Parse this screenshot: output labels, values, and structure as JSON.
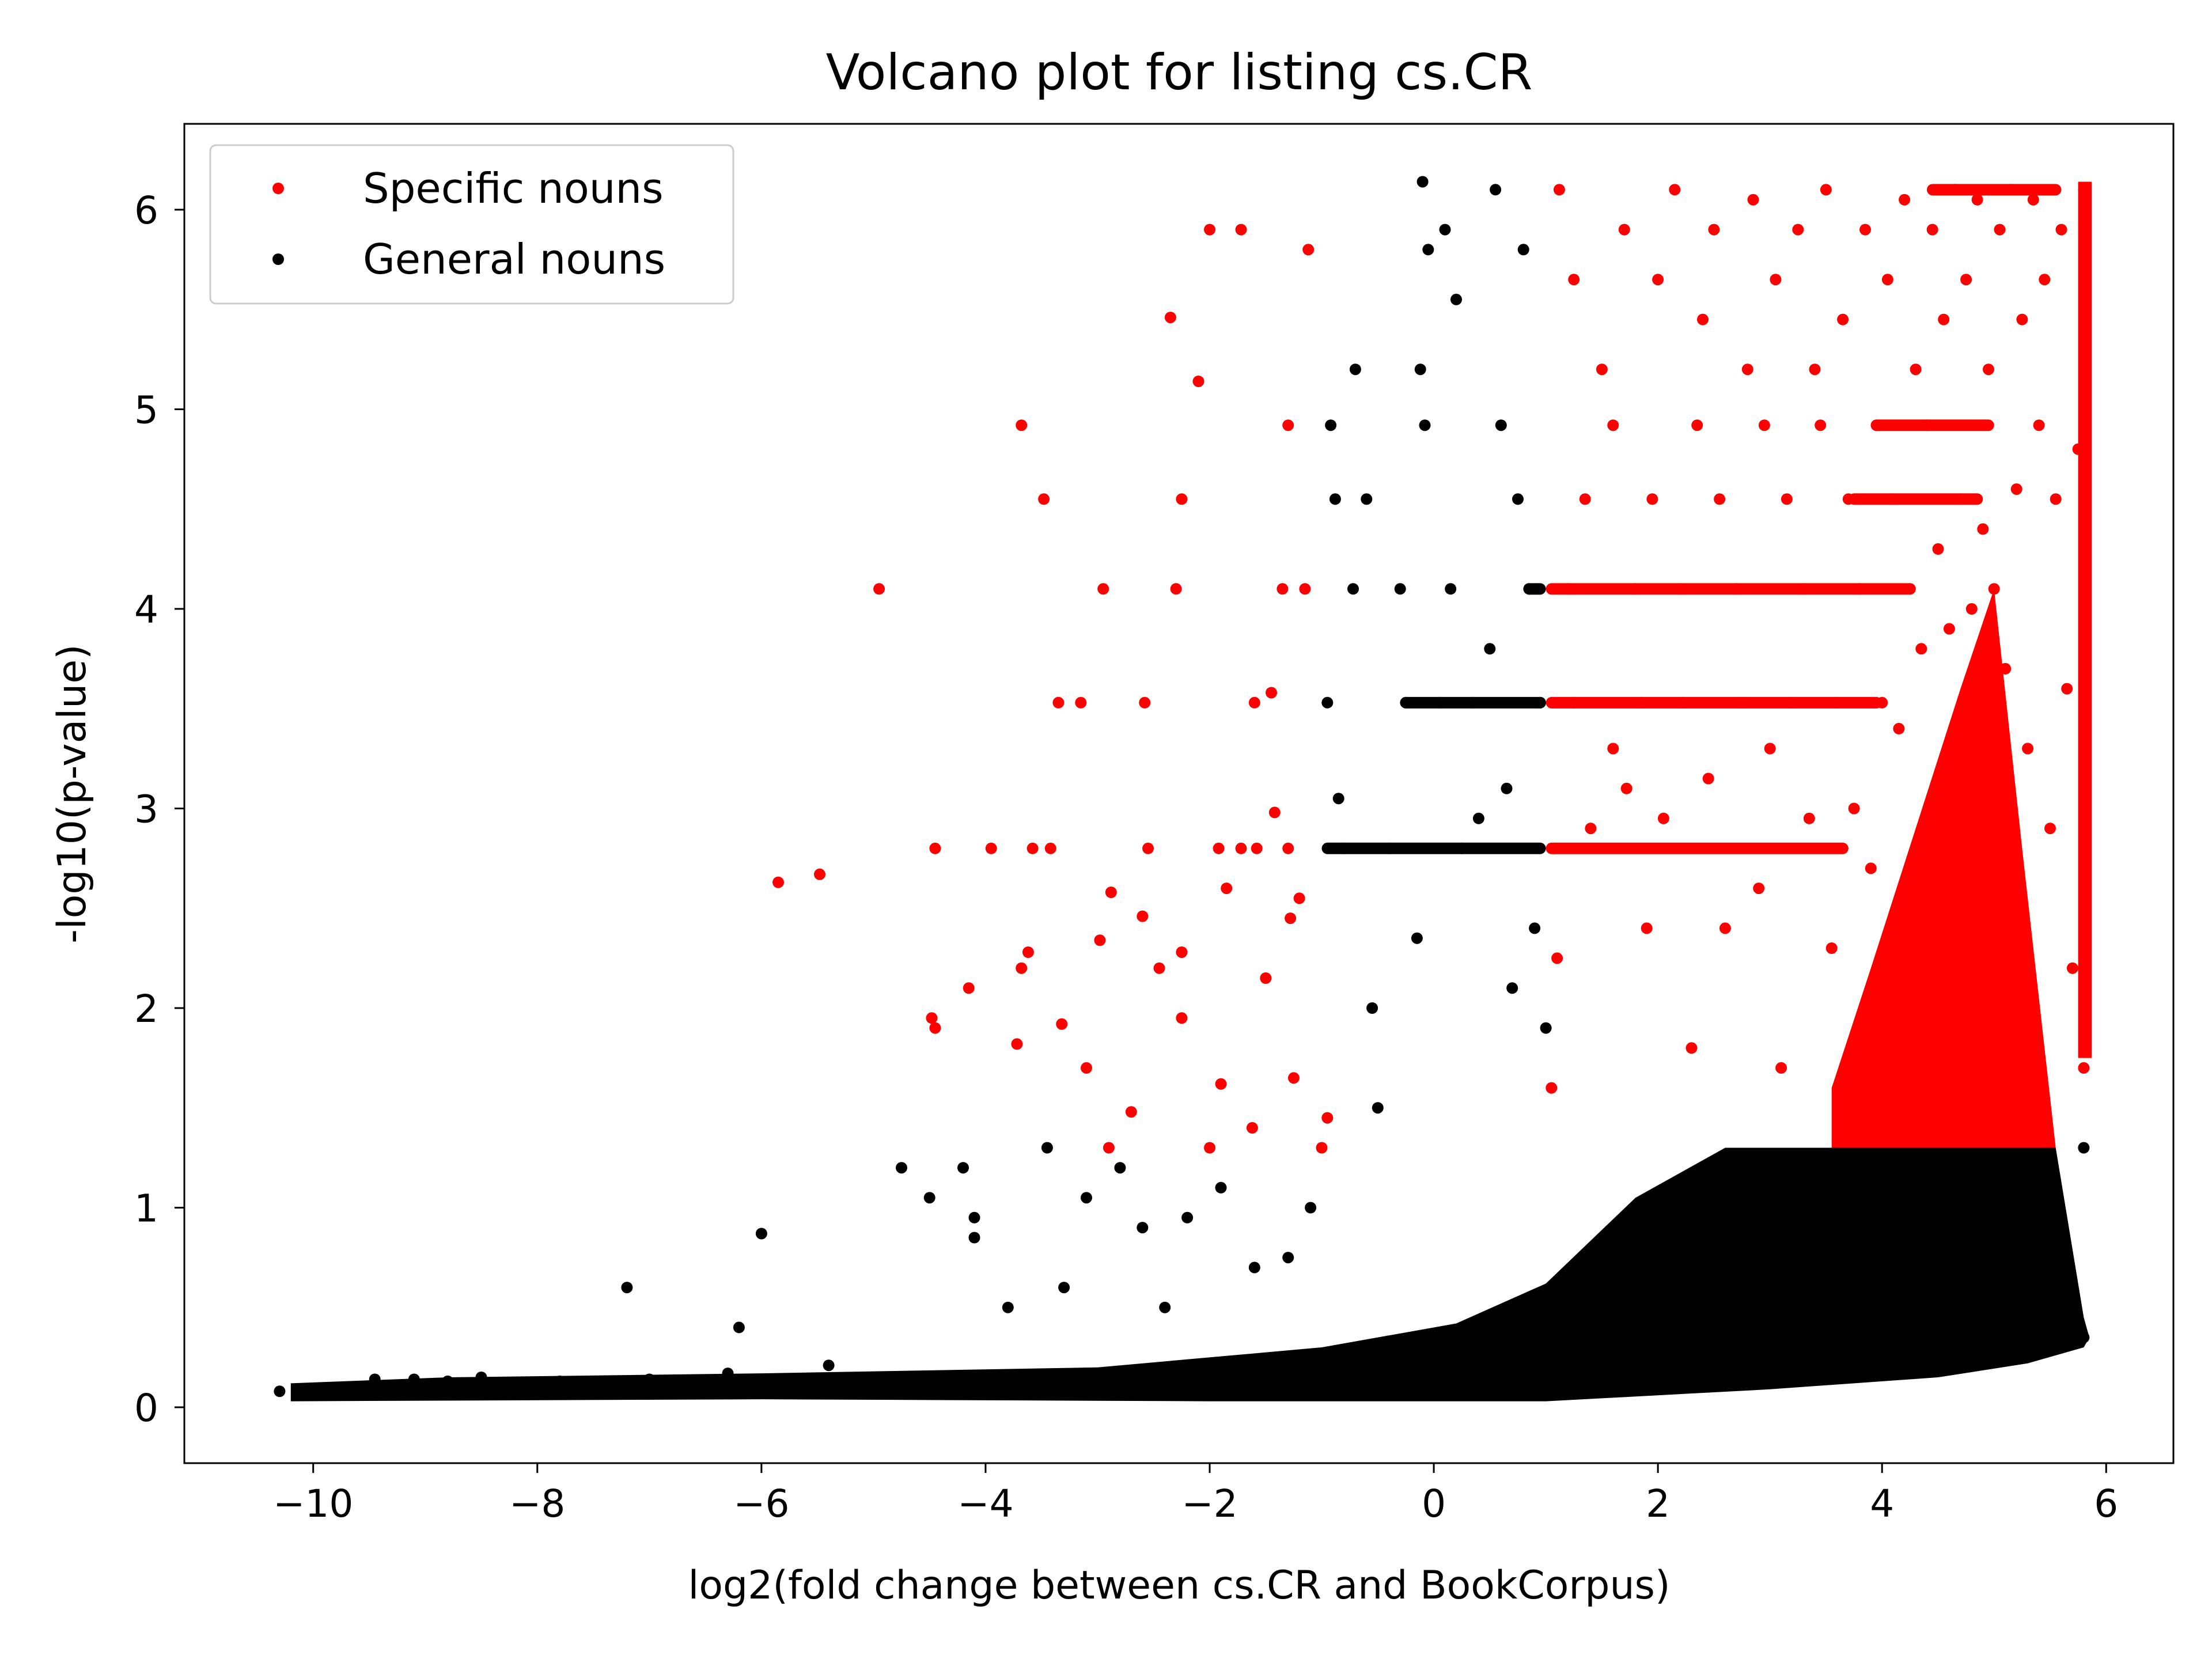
{
  "chart_data": {
    "type": "scatter",
    "title": "Volcano plot for listing cs.CR",
    "xlabel": "log2(fold change between cs.CR and BookCorpus)",
    "ylabel": "-log10(p-value)",
    "xlim": [
      -11.15,
      6.6
    ],
    "ylim": [
      -0.28,
      6.43
    ],
    "xticks": [
      -10,
      -8,
      -6,
      -4,
      -2,
      0,
      2,
      4,
      6
    ],
    "xtick_labels": [
      "−10",
      "−8",
      "−6",
      "−4",
      "−2",
      "0",
      "2",
      "4",
      "6"
    ],
    "yticks": [
      0,
      1,
      2,
      3,
      4,
      5,
      6
    ],
    "ytick_labels": [
      "0",
      "1",
      "2",
      "3",
      "4",
      "5",
      "6"
    ],
    "grid": false,
    "legend_position": "top-left",
    "significance_threshold": 1.3,
    "series": [
      {
        "name": "Specific nouns",
        "color": "#ff0000",
        "points": [
          [
            -5.85,
            2.63
          ],
          [
            -5.48,
            2.67
          ],
          [
            -4.95,
            4.1
          ],
          [
            -4.48,
            1.95
          ],
          [
            -4.45,
            2.8
          ],
          [
            -4.45,
            1.9
          ],
          [
            -4.15,
            2.1
          ],
          [
            -3.95,
            2.8
          ],
          [
            -3.72,
            1.82
          ],
          [
            -3.68,
            2.2
          ],
          [
            -3.68,
            4.92
          ],
          [
            -3.62,
            2.28
          ],
          [
            -3.58,
            2.8
          ],
          [
            -3.48,
            4.55
          ],
          [
            -3.42,
            2.8
          ],
          [
            -3.35,
            3.53
          ],
          [
            -3.32,
            1.92
          ],
          [
            -3.15,
            3.53
          ],
          [
            -3.1,
            1.7
          ],
          [
            -2.98,
            2.34
          ],
          [
            -2.95,
            4.1
          ],
          [
            -2.9,
            1.3
          ],
          [
            -2.88,
            2.58
          ],
          [
            -2.7,
            1.48
          ],
          [
            -2.6,
            2.46
          ],
          [
            -2.58,
            3.53
          ],
          [
            -2.55,
            2.8
          ],
          [
            -2.45,
            2.2
          ],
          [
            -2.35,
            5.46
          ],
          [
            -2.3,
            4.1
          ],
          [
            -2.25,
            4.55
          ],
          [
            -2.25,
            2.28
          ],
          [
            -2.25,
            1.95
          ],
          [
            -2.1,
            5.14
          ],
          [
            -2.0,
            5.9
          ],
          [
            -2.0,
            1.3
          ],
          [
            -1.92,
            2.8
          ],
          [
            -1.9,
            1.62
          ],
          [
            -1.85,
            2.6
          ],
          [
            -1.72,
            5.9
          ],
          [
            -1.72,
            2.8
          ],
          [
            -1.62,
            1.4
          ],
          [
            -1.6,
            3.53
          ],
          [
            -1.58,
            2.8
          ],
          [
            -1.5,
            2.15
          ],
          [
            -1.45,
            3.58
          ],
          [
            -1.42,
            2.98
          ],
          [
            -1.35,
            4.1
          ],
          [
            -1.3,
            2.8
          ],
          [
            -1.3,
            4.92
          ],
          [
            -1.28,
            2.45
          ],
          [
            -1.25,
            1.65
          ],
          [
            -1.2,
            2.55
          ],
          [
            -1.15,
            4.1
          ],
          [
            -1.12,
            5.8
          ],
          [
            -1.0,
            1.3
          ],
          [
            -0.95,
            1.45
          ],
          [
            1.05,
            1.6
          ],
          [
            1.1,
            2.25
          ],
          [
            1.12,
            6.1
          ],
          [
            1.2,
            4.1
          ],
          [
            1.25,
            3.53
          ],
          [
            1.25,
            5.65
          ],
          [
            1.35,
            4.55
          ],
          [
            1.4,
            2.9
          ],
          [
            1.5,
            5.2
          ],
          [
            1.6,
            3.3
          ],
          [
            1.6,
            4.92
          ],
          [
            1.7,
            5.9
          ],
          [
            1.72,
            3.1
          ],
          [
            1.8,
            4.1
          ],
          [
            1.85,
            3.53
          ],
          [
            1.9,
            2.4
          ],
          [
            1.95,
            4.55
          ],
          [
            2.0,
            5.65
          ],
          [
            2.05,
            2.95
          ],
          [
            2.15,
            6.1
          ],
          [
            2.2,
            4.1
          ],
          [
            2.22,
            3.53
          ],
          [
            2.3,
            1.8
          ],
          [
            2.35,
            4.92
          ],
          [
            2.4,
            5.45
          ],
          [
            2.45,
            3.15
          ],
          [
            2.5,
            5.9
          ],
          [
            2.55,
            4.55
          ],
          [
            2.6,
            2.4
          ],
          [
            2.7,
            4.1
          ],
          [
            2.75,
            3.53
          ],
          [
            2.8,
            5.2
          ],
          [
            2.85,
            6.05
          ],
          [
            2.9,
            2.6
          ],
          [
            2.95,
            4.92
          ],
          [
            3.0,
            3.3
          ],
          [
            3.05,
            5.65
          ],
          [
            3.1,
            1.7
          ],
          [
            3.15,
            4.55
          ],
          [
            3.2,
            3.53
          ],
          [
            3.25,
            5.9
          ],
          [
            3.3,
            4.1
          ],
          [
            3.35,
            2.95
          ],
          [
            3.4,
            5.2
          ],
          [
            3.45,
            4.92
          ],
          [
            3.5,
            6.1
          ],
          [
            3.55,
            2.3
          ],
          [
            3.6,
            3.53
          ],
          [
            3.65,
            5.45
          ],
          [
            3.7,
            4.55
          ],
          [
            3.75,
            3.0
          ],
          [
            3.8,
            4.1
          ],
          [
            3.85,
            5.9
          ],
          [
            3.9,
            2.7
          ],
          [
            3.95,
            4.92
          ],
          [
            4.0,
            3.53
          ],
          [
            4.05,
            5.65
          ],
          [
            4.1,
            4.55
          ],
          [
            4.15,
            3.4
          ],
          [
            4.2,
            6.05
          ],
          [
            4.25,
            4.1
          ],
          [
            4.3,
            5.2
          ],
          [
            4.35,
            3.8
          ],
          [
            4.4,
            4.92
          ],
          [
            4.45,
            5.9
          ],
          [
            4.5,
            4.3
          ],
          [
            4.55,
            5.45
          ],
          [
            4.6,
            3.9
          ],
          [
            4.65,
            6.1
          ],
          [
            4.7,
            4.55
          ],
          [
            4.75,
            5.65
          ],
          [
            4.8,
            4.0
          ],
          [
            4.85,
            6.05
          ],
          [
            4.9,
            4.4
          ],
          [
            4.95,
            5.2
          ],
          [
            5.0,
            4.1
          ],
          [
            5.05,
            5.9
          ],
          [
            5.1,
            3.7
          ],
          [
            5.15,
            6.1
          ],
          [
            5.2,
            4.6
          ],
          [
            5.25,
            5.45
          ],
          [
            5.3,
            3.3
          ],
          [
            5.35,
            6.05
          ],
          [
            5.4,
            4.92
          ],
          [
            5.45,
            5.65
          ],
          [
            5.5,
            2.9
          ],
          [
            5.55,
            4.55
          ],
          [
            5.6,
            5.9
          ],
          [
            5.65,
            3.6
          ],
          [
            5.7,
            2.2
          ],
          [
            5.75,
            4.8
          ],
          [
            5.8,
            6.1
          ],
          [
            5.8,
            1.7
          ]
        ]
      },
      {
        "name": "General nouns",
        "color": "#000000",
        "points": [
          [
            -10.3,
            0.08
          ],
          [
            -9.45,
            0.14
          ],
          [
            -9.1,
            0.14
          ],
          [
            -8.8,
            0.13
          ],
          [
            -8.5,
            0.15
          ],
          [
            -8.2,
            0.12
          ],
          [
            -7.8,
            0.13
          ],
          [
            -7.5,
            0.11
          ],
          [
            -7.2,
            0.6
          ],
          [
            -7.0,
            0.14
          ],
          [
            -6.6,
            0.12
          ],
          [
            -6.3,
            0.17
          ],
          [
            -6.2,
            0.4
          ],
          [
            -6.0,
            0.87
          ],
          [
            -5.8,
            0.12
          ],
          [
            -5.4,
            0.21
          ],
          [
            -5.0,
            0.15
          ],
          [
            -4.75,
            1.2
          ],
          [
            -4.5,
            1.05
          ],
          [
            -4.2,
            1.2
          ],
          [
            -4.1,
            0.85
          ],
          [
            -4.1,
            0.95
          ],
          [
            -3.8,
            0.5
          ],
          [
            -3.45,
            1.3
          ],
          [
            -3.3,
            0.6
          ],
          [
            -3.1,
            1.05
          ],
          [
            -2.8,
            1.2
          ],
          [
            -2.6,
            0.9
          ],
          [
            -2.4,
            0.5
          ],
          [
            -2.2,
            0.95
          ],
          [
            -1.9,
            1.1
          ],
          [
            -1.6,
            0.7
          ],
          [
            -1.3,
            0.75
          ],
          [
            -1.1,
            1.0
          ],
          [
            -0.95,
            3.53
          ],
          [
            -0.92,
            4.92
          ],
          [
            -0.88,
            4.55
          ],
          [
            -0.85,
            3.05
          ],
          [
            -0.8,
            2.8
          ],
          [
            -0.72,
            4.1
          ],
          [
            -0.7,
            5.2
          ],
          [
            -0.6,
            4.55
          ],
          [
            -0.55,
            2.0
          ],
          [
            -0.5,
            1.5
          ],
          [
            -0.4,
            2.8
          ],
          [
            -0.3,
            4.1
          ],
          [
            -0.25,
            3.53
          ],
          [
            -0.15,
            2.35
          ],
          [
            -0.12,
            5.2
          ],
          [
            -0.1,
            6.14
          ],
          [
            -0.08,
            4.92
          ],
          [
            -0.05,
            5.8
          ],
          [
            0.05,
            3.53
          ],
          [
            0.1,
            5.9
          ],
          [
            0.15,
            4.1
          ],
          [
            0.2,
            5.55
          ],
          [
            0.25,
            2.8
          ],
          [
            0.35,
            3.53
          ],
          [
            0.4,
            2.95
          ],
          [
            0.5,
            3.8
          ],
          [
            0.55,
            6.1
          ],
          [
            0.6,
            4.92
          ],
          [
            0.65,
            3.1
          ],
          [
            0.7,
            2.1
          ],
          [
            0.75,
            4.55
          ],
          [
            0.8,
            5.8
          ],
          [
            0.85,
            4.1
          ],
          [
            0.9,
            2.4
          ],
          [
            0.95,
            3.53
          ],
          [
            1.0,
            1.9
          ],
          [
            1.2,
            0.5
          ],
          [
            1.5,
            0.8
          ],
          [
            2.0,
            1.0
          ],
          [
            2.5,
            0.6
          ],
          [
            3.0,
            0.9
          ],
          [
            3.5,
            1.2
          ],
          [
            4.0,
            0.7
          ],
          [
            4.5,
            1.1
          ],
          [
            5.0,
            0.6
          ],
          [
            5.5,
            0.9
          ],
          [
            5.8,
            1.3
          ],
          [
            5.8,
            0.35
          ]
        ]
      }
    ]
  }
}
